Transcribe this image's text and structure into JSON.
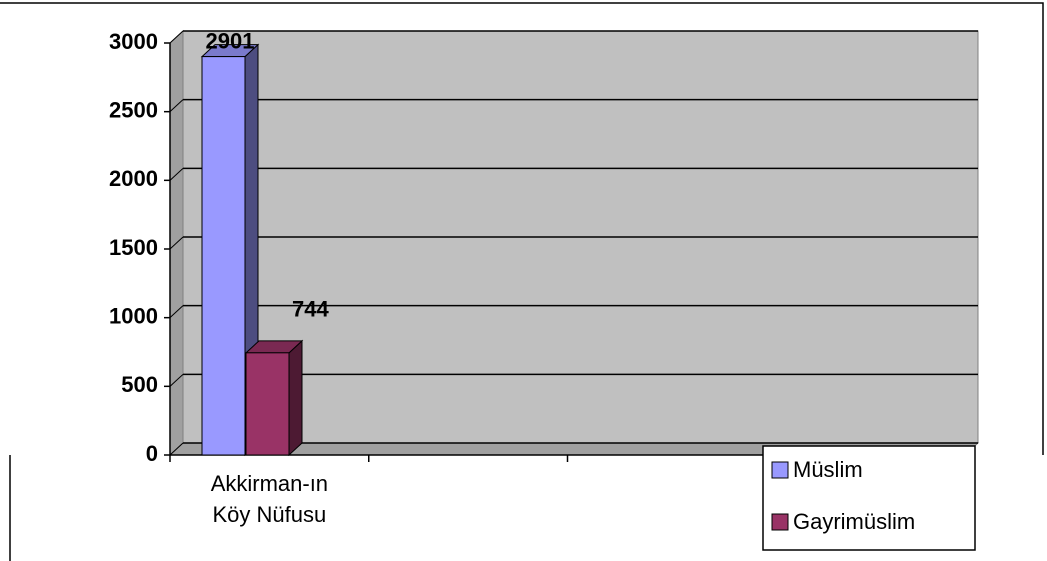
{
  "chart_data": {
    "type": "bar3d",
    "categories": [
      "Akkirman-ın Köy Nüfusu",
      null,
      null,
      null
    ],
    "series": [
      {
        "name": "Müslim",
        "color": "#9999ff",
        "values": [
          2901,
          null,
          null,
          null
        ]
      },
      {
        "name": "Gayrimüslim",
        "color": "#993366",
        "values": [
          744,
          null,
          null,
          null
        ]
      }
    ],
    "ylim": [
      0,
      3000
    ],
    "yticks": [
      0,
      500,
      1000,
      1500,
      2000,
      2500,
      3000
    ],
    "grid": true,
    "legend": "bottom-right"
  }
}
